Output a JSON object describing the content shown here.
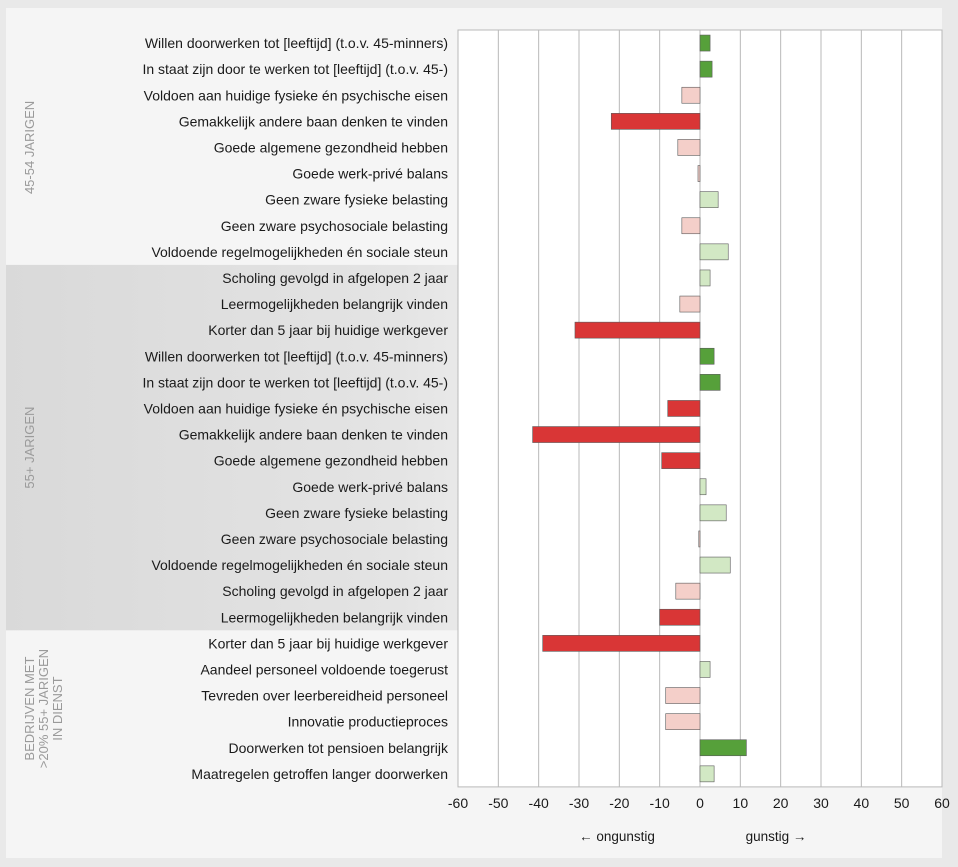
{
  "chart_data": {
    "type": "bar",
    "orientation": "horizontal",
    "xlim": [
      -60,
      60
    ],
    "x_ticks": [
      "-60",
      "-50",
      "-40",
      "-30",
      "-20",
      "-10",
      "0",
      "10",
      "20",
      "30",
      "40",
      "50",
      "60"
    ],
    "grid": true,
    "direction_labels": {
      "negative": "← ongunstig",
      "positive": "gunstig →"
    },
    "groups": [
      {
        "label_lines": [
          "45-54 JARIGEN"
        ],
        "start": 0,
        "end": 9
      },
      {
        "label_lines": [
          "55+ JARIGEN"
        ],
        "start": 9,
        "end": 23
      },
      {
        "label_lines": [
          "BEDRIJVEN MET",
          ">20% 55+ JARIGEN",
          "IN DIENST"
        ],
        "start": 23,
        "end": 29
      }
    ],
    "categories": [
      "Willen doorwerken tot [leeftijd] (t.o.v. 45-minners)",
      "In staat zijn door te werken tot [leeftijd] (t.o.v. 45-)",
      "Voldoen aan huidige fysieke én psychische eisen",
      "Gemakkelijk andere baan denken te vinden",
      "Goede algemene gezondheid hebben",
      "Goede werk-privé balans",
      "Geen zware fysieke belasting",
      "Geen zware psychosociale belasting",
      "Voldoende regelmogelijkheden én sociale steun",
      "Scholing gevolgd in afgelopen 2 jaar",
      "Leermogelijkheden belangrijk vinden",
      "Korter dan 5 jaar bij huidige werkgever",
      "Willen doorwerken tot [leeftijd] (t.o.v. 45-minners)",
      "In staat zijn door te werken tot [leeftijd] (t.o.v. 45-)",
      "Voldoen aan huidige fysieke én psychische eisen",
      "Gemakkelijk andere baan denken te vinden",
      "Goede algemene gezondheid hebben",
      "Goede werk-privé balans",
      "Geen zware fysieke belasting",
      "Geen zware psychosociale belasting",
      "Voldoende regelmogelijkheden én sociale steun",
      "Scholing gevolgd in afgelopen 2 jaar",
      "Leermogelijkheden belangrijk vinden",
      "Korter dan 5 jaar bij huidige werkgever",
      "Aandeel personeel voldoende toegerust",
      "Tevreden over leerbereidheid personeel",
      "Innovatie productieproces",
      "Doorwerken tot pensioen belangrijk",
      "Maatregelen getroffen langer doorwerken"
    ],
    "values": [
      2.5,
      3,
      -4.5,
      -22,
      -5.5,
      -0.5,
      4.5,
      -4.5,
      7,
      2.5,
      -5,
      -31,
      3.5,
      5,
      -8,
      -41.5,
      -9.5,
      1.5,
      6.5,
      -0.3,
      7.5,
      -6,
      -10,
      -39,
      2.5,
      -8.5,
      -8.5,
      11.5,
      3.5
    ],
    "significant": [
      true,
      true,
      false,
      true,
      false,
      false,
      false,
      false,
      false,
      false,
      false,
      true,
      true,
      true,
      true,
      true,
      true,
      false,
      false,
      false,
      false,
      false,
      true,
      true,
      false,
      false,
      false,
      true,
      false
    ],
    "colors": {
      "positive_significant": "#56a03a",
      "positive_weak": "#d2e8c4",
      "negative_significant": "#d93636",
      "negative_weak": "#f4cfc9",
      "bar_stroke": "#5a5a5a"
    }
  }
}
